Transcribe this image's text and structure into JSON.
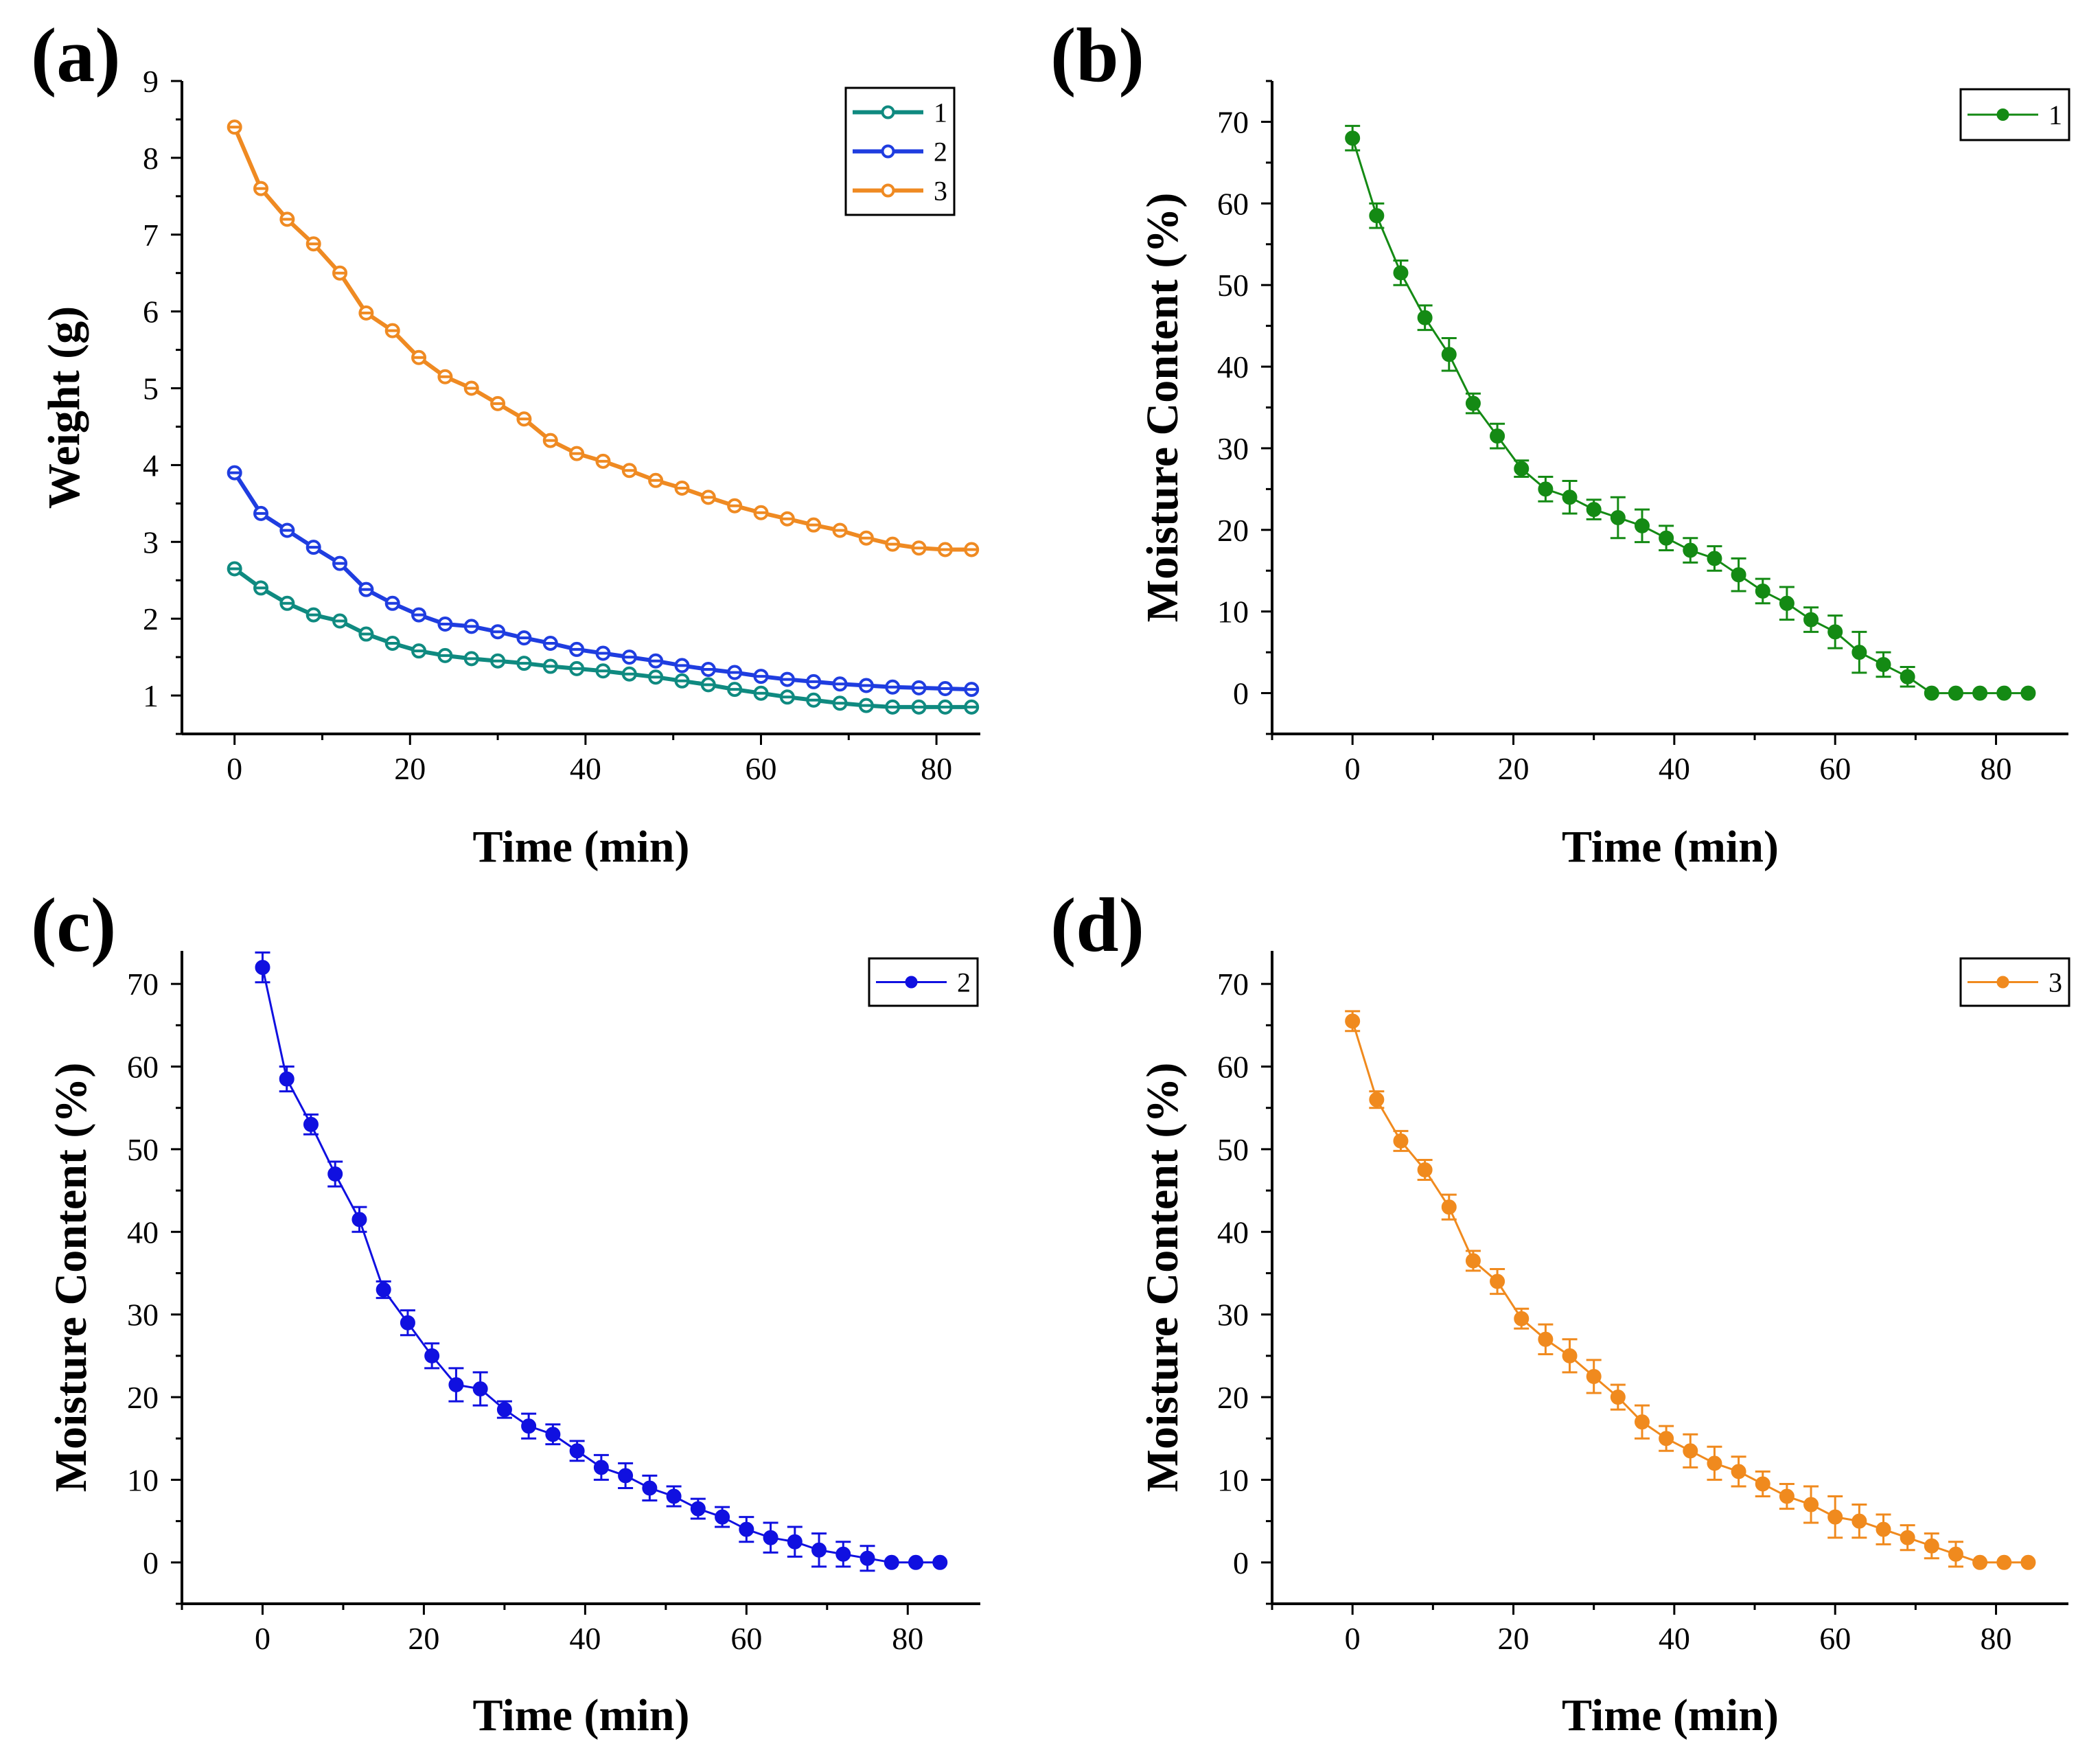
{
  "chart_data": [
    {
      "panel": "(a)",
      "type": "line",
      "xlabel": "Time (min)",
      "ylabel": "Weight (g)",
      "xlim": [
        -6,
        85
      ],
      "ylim": [
        0.5,
        9
      ],
      "xticks": [
        0,
        20,
        40,
        60,
        80
      ],
      "yticks": [
        1,
        2,
        3,
        4,
        5,
        6,
        7,
        8,
        9
      ],
      "grid": false,
      "legend_position": "top-right",
      "x": [
        0,
        3,
        6,
        9,
        12,
        15,
        18,
        21,
        24,
        27,
        30,
        33,
        36,
        39,
        42,
        45,
        48,
        51,
        54,
        57,
        60,
        63,
        66,
        69,
        72,
        75,
        78,
        81,
        84
      ],
      "series": [
        {
          "name": "1",
          "color": "#0f8a80",
          "values": [
            2.65,
            2.4,
            2.2,
            2.05,
            1.97,
            1.8,
            1.68,
            1.58,
            1.52,
            1.48,
            1.45,
            1.42,
            1.38,
            1.35,
            1.32,
            1.28,
            1.24,
            1.19,
            1.14,
            1.08,
            1.03,
            0.98,
            0.94,
            0.9,
            0.87,
            0.85,
            0.85,
            0.85,
            0.85
          ]
        },
        {
          "name": "2",
          "color": "#1f3de0",
          "values": [
            3.9,
            3.37,
            3.15,
            2.93,
            2.72,
            2.38,
            2.2,
            2.05,
            1.93,
            1.9,
            1.83,
            1.75,
            1.68,
            1.6,
            1.55,
            1.5,
            1.45,
            1.39,
            1.34,
            1.3,
            1.25,
            1.21,
            1.18,
            1.15,
            1.13,
            1.11,
            1.1,
            1.09,
            1.08
          ]
        },
        {
          "name": "3",
          "color": "#ef8a22",
          "values": [
            8.4,
            7.6,
            7.2,
            6.88,
            6.5,
            5.98,
            5.75,
            5.4,
            5.15,
            5.0,
            4.8,
            4.6,
            4.32,
            4.15,
            4.05,
            3.93,
            3.8,
            3.7,
            3.58,
            3.47,
            3.38,
            3.3,
            3.22,
            3.15,
            3.05,
            2.97,
            2.92,
            2.9,
            2.9
          ]
        }
      ]
    },
    {
      "panel": "(b)",
      "type": "line",
      "xlabel": "Time (min)",
      "ylabel": "Moisture Content (%)",
      "xlim": [
        -10,
        89
      ],
      "ylim": [
        -5,
        75
      ],
      "xticks": [
        0,
        20,
        40,
        60,
        80
      ],
      "yticks": [
        0,
        10,
        20,
        30,
        40,
        50,
        60,
        70
      ],
      "grid": false,
      "legend_position": "top-right",
      "x": [
        0,
        3,
        6,
        9,
        12,
        15,
        18,
        21,
        24,
        27,
        30,
        33,
        36,
        39,
        42,
        45,
        48,
        51,
        54,
        57,
        60,
        63,
        66,
        69,
        72,
        75,
        78,
        81,
        84
      ],
      "series": [
        {
          "name": "1",
          "color": "#148a14",
          "values": [
            68,
            58.5,
            51.5,
            46,
            41.5,
            35.5,
            31.5,
            27.5,
            25,
            24,
            22.5,
            21.5,
            20.5,
            19,
            17.5,
            16.5,
            14.5,
            12.5,
            11,
            9,
            7.5,
            5,
            3.5,
            2,
            0,
            0,
            0,
            0,
            0
          ],
          "errors": [
            1.5,
            1.5,
            1.5,
            1.5,
            2,
            1.2,
            1.5,
            1,
            1.5,
            2,
            1.2,
            2.5,
            2,
            1.5,
            1.5,
            1.5,
            2,
            1.5,
            2,
            1.5,
            2,
            2.5,
            1.5,
            1.2,
            0.3,
            0.3,
            0.3,
            0.3,
            0.3
          ]
        }
      ]
    },
    {
      "panel": "(c)",
      "type": "line",
      "xlabel": "Time (min)",
      "ylabel": "Moisture Content (%)",
      "xlim": [
        -10,
        89
      ],
      "ylim": [
        -5,
        74
      ],
      "xticks": [
        0,
        20,
        40,
        60,
        80
      ],
      "yticks": [
        0,
        10,
        20,
        30,
        40,
        50,
        60,
        70
      ],
      "grid": false,
      "legend_position": "top-right",
      "x": [
        0,
        3,
        6,
        9,
        12,
        15,
        18,
        21,
        24,
        27,
        30,
        33,
        36,
        39,
        42,
        45,
        48,
        51,
        54,
        57,
        60,
        63,
        66,
        69,
        72,
        75,
        78,
        81,
        84
      ],
      "series": [
        {
          "name": "2",
          "color": "#1010e0",
          "values": [
            72,
            58.5,
            53,
            47,
            41.5,
            33,
            29,
            25,
            21.5,
            21,
            18.5,
            16.5,
            15.5,
            13.5,
            11.5,
            10.5,
            9,
            8,
            6.5,
            5.5,
            4,
            3,
            2.5,
            1.5,
            1,
            0.5,
            0,
            0,
            0
          ],
          "errors": [
            1.8,
            1.5,
            1.2,
            1.5,
            1.5,
            1,
            1.5,
            1.5,
            2,
            2,
            1,
            1.5,
            1.2,
            1.2,
            1.5,
            1.5,
            1.5,
            1.2,
            1.2,
            1.2,
            1.5,
            1.8,
            1.8,
            2,
            1.5,
            1.5,
            0.3,
            0.3,
            0.3
          ]
        }
      ]
    },
    {
      "panel": "(d)",
      "type": "line",
      "xlabel": "Time (min)",
      "ylabel": "Moisture Content (%)",
      "xlim": [
        -10,
        89
      ],
      "ylim": [
        -5,
        74
      ],
      "xticks": [
        0,
        20,
        40,
        60,
        80
      ],
      "yticks": [
        0,
        10,
        20,
        30,
        40,
        50,
        60,
        70
      ],
      "grid": false,
      "legend_position": "top-right",
      "x": [
        0,
        3,
        6,
        9,
        12,
        15,
        18,
        21,
        24,
        27,
        30,
        33,
        36,
        39,
        42,
        45,
        48,
        51,
        54,
        57,
        60,
        63,
        66,
        69,
        72,
        75,
        78,
        81,
        84
      ],
      "series": [
        {
          "name": "3",
          "color": "#f08a1e",
          "values": [
            65.5,
            56,
            51,
            47.5,
            43,
            36.5,
            34,
            29.5,
            27,
            25,
            22.5,
            20,
            17,
            15,
            13.5,
            12,
            11,
            9.5,
            8,
            7,
            5.5,
            5,
            4,
            3,
            2,
            1,
            0,
            0,
            0
          ],
          "errors": [
            1.2,
            1,
            1.2,
            1.2,
            1.5,
            1.2,
            1.5,
            1.2,
            1.8,
            2,
            2,
            1.5,
            2,
            1.5,
            2,
            2,
            1.8,
            1.5,
            1.5,
            2.2,
            2.5,
            2,
            1.8,
            1.5,
            1.5,
            1.5,
            0.3,
            0.3,
            0.3
          ]
        }
      ]
    }
  ]
}
